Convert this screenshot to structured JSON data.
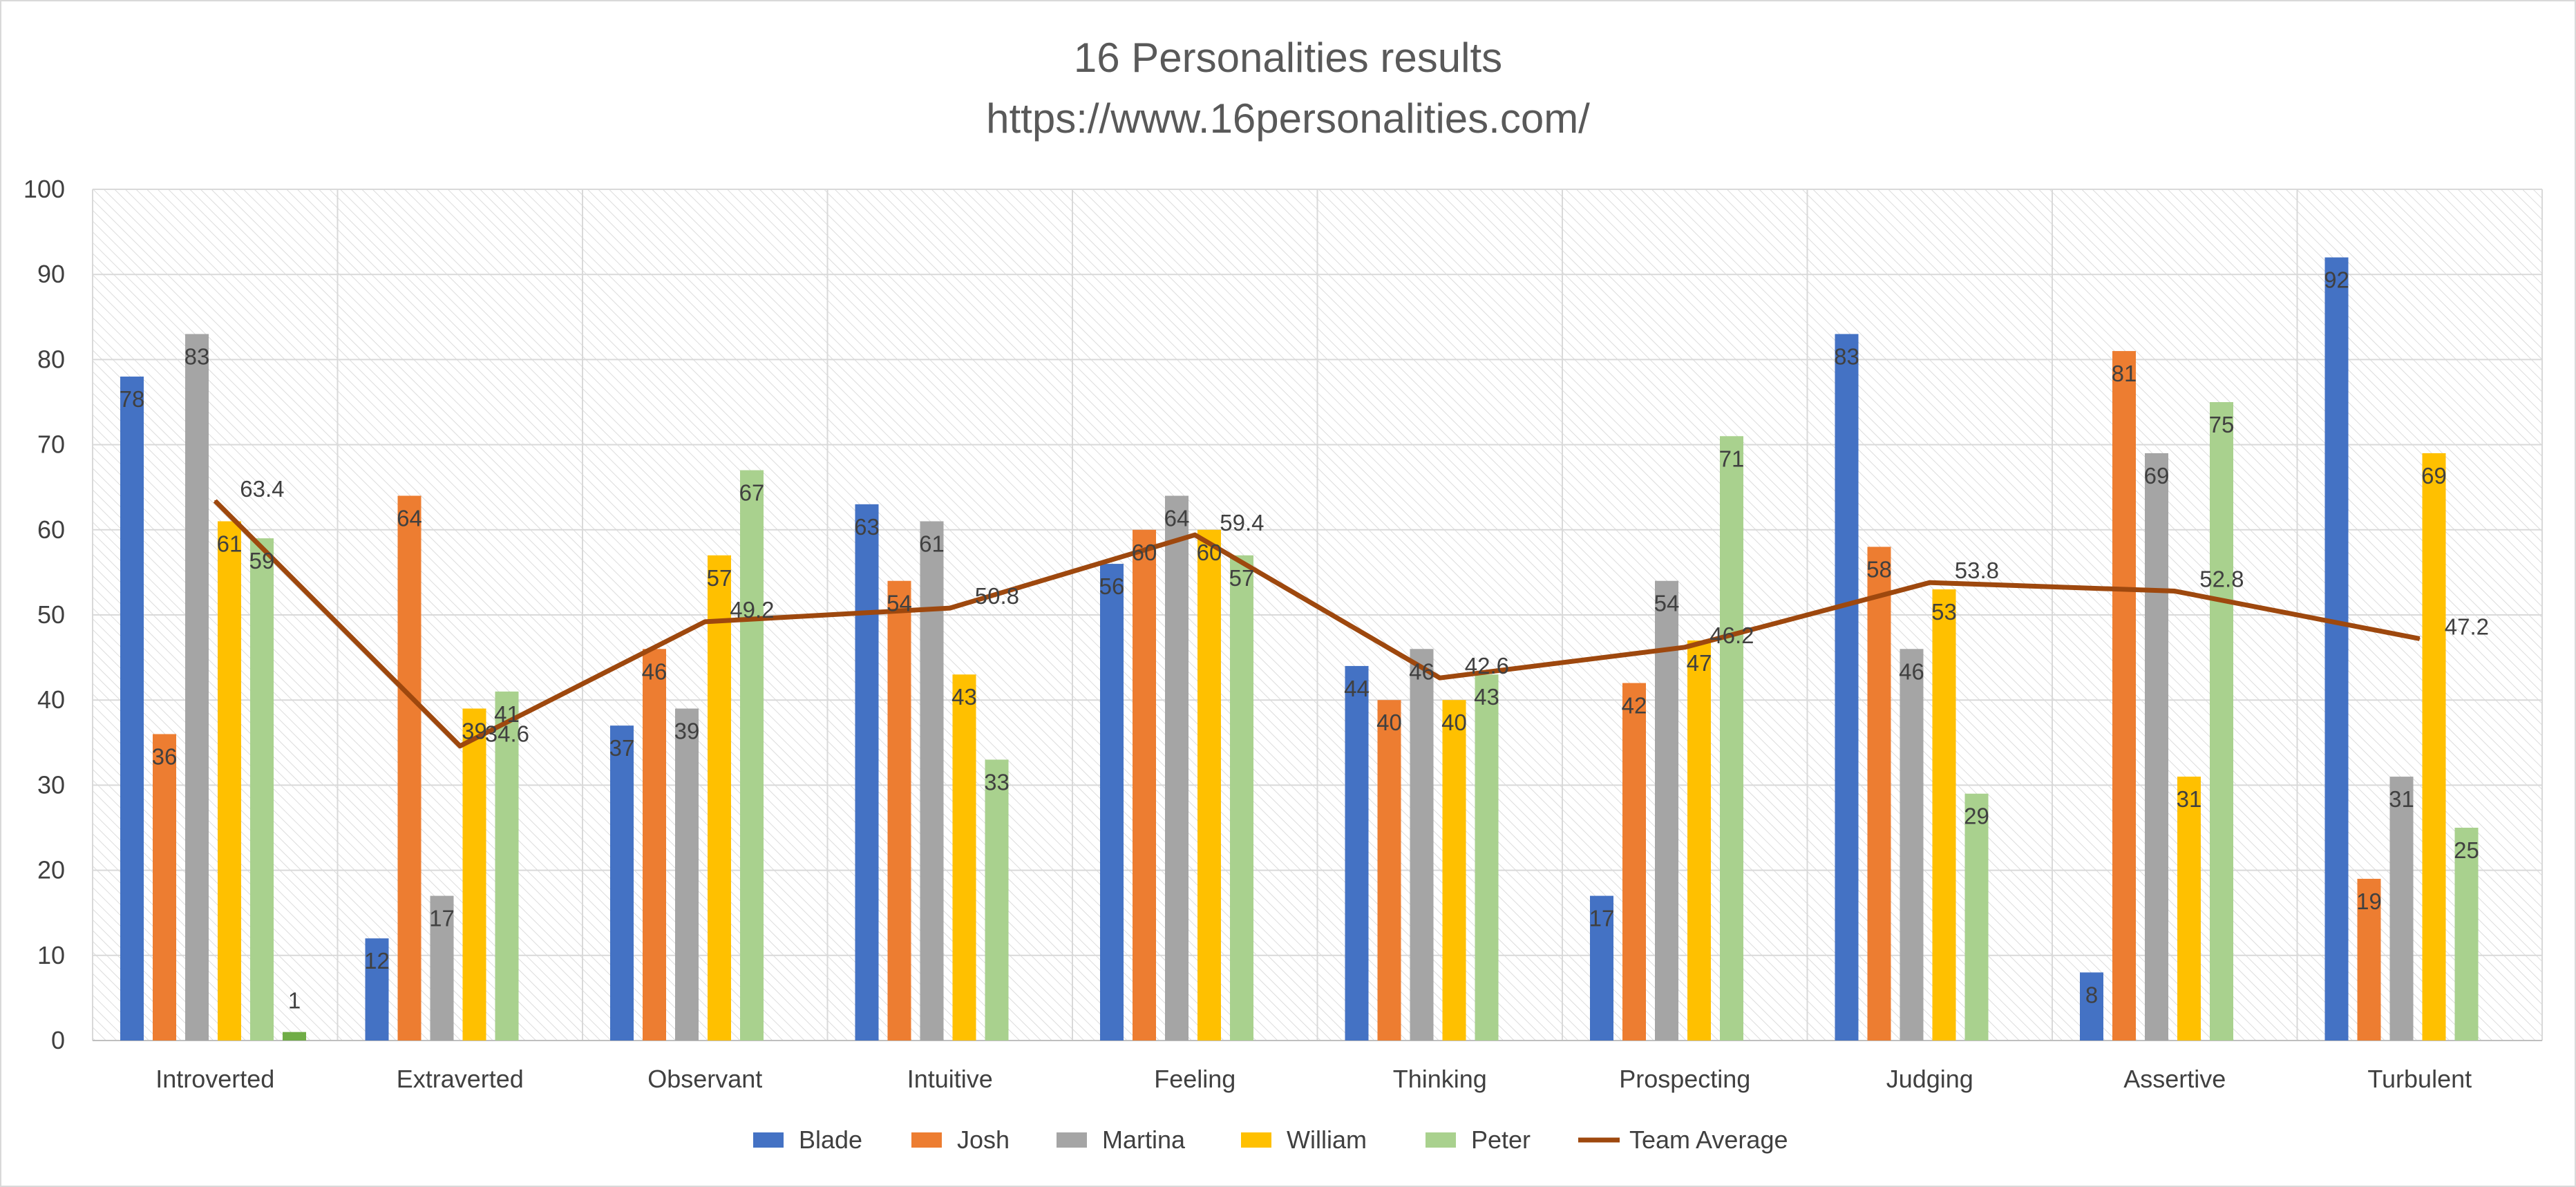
{
  "chart_data": {
    "type": "bar",
    "title": "16 Personalities results",
    "subtitle": "https://www.16personalities.com/",
    "categories": [
      "Introverted",
      "Extraverted",
      "Observant",
      "Intuitive",
      "Feeling",
      "Thinking",
      "Prospecting",
      "Judging",
      "Assertive",
      "Turbulent"
    ],
    "series": [
      {
        "name": "Blade",
        "type": "bar",
        "color": "#4472C4",
        "values": [
          78,
          12,
          37,
          63,
          56,
          44,
          17,
          83,
          8,
          92
        ]
      },
      {
        "name": "Josh",
        "type": "bar",
        "color": "#ED7D31",
        "values": [
          36,
          64,
          46,
          54,
          60,
          40,
          42,
          58,
          81,
          19
        ]
      },
      {
        "name": "Martina",
        "type": "bar",
        "color": "#A5A5A5",
        "values": [
          83,
          17,
          39,
          61,
          64,
          46,
          54,
          46,
          69,
          31
        ]
      },
      {
        "name": "William",
        "type": "bar",
        "color": "#FFC000",
        "values": [
          61,
          39,
          57,
          43,
          60,
          40,
          47,
          53,
          31,
          69
        ]
      },
      {
        "name": "Peter",
        "type": "bar",
        "color": "#A9D18E",
        "values": [
          59,
          41,
          67,
          33,
          57,
          43,
          71,
          29,
          75,
          25
        ]
      },
      {
        "name": "Team Average",
        "type": "line",
        "color": "#9E480E",
        "values": [
          63.4,
          34.6,
          49.2,
          50.8,
          59.4,
          42.6,
          46.2,
          53.8,
          52.8,
          47.2
        ]
      }
    ],
    "extra_points": [
      {
        "category": "Introverted",
        "value": 1,
        "color": "#70AD47"
      }
    ],
    "ylim": [
      0,
      100
    ],
    "yticks": [
      0,
      10,
      20,
      30,
      40,
      50,
      60,
      70,
      80,
      90,
      100
    ],
    "grid": true,
    "legend": "bottom",
    "xlabel": "",
    "ylabel": ""
  }
}
